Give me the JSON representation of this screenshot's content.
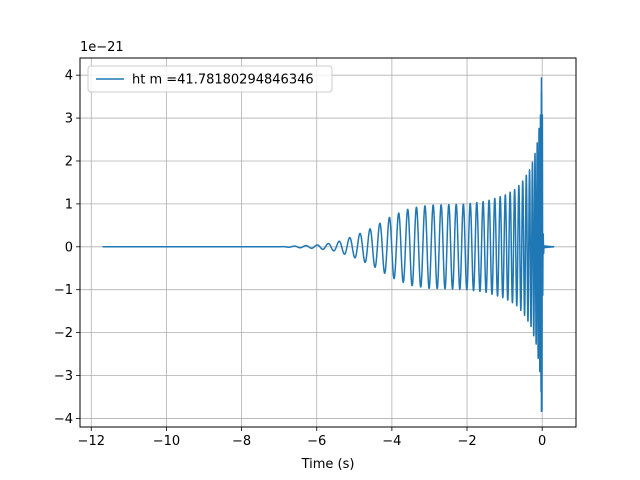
{
  "chart_data": {
    "type": "line",
    "title": "",
    "xlabel": "Time (s)",
    "ylabel": "",
    "offset_label": "1e−21",
    "xlim": [
      -12.3,
      0.9
    ],
    "ylim": [
      -4.2,
      4.4
    ],
    "xticks": [
      -12,
      -10,
      -8,
      -6,
      -4,
      -2,
      0
    ],
    "xtick_labels": [
      "−12",
      "−10",
      "−8",
      "−6",
      "−4",
      "−2",
      "0"
    ],
    "yticks": [
      -4,
      -3,
      -2,
      -1,
      0,
      1,
      2,
      3,
      4
    ],
    "ytick_labels": [
      "−4",
      "−3",
      "−2",
      "−1",
      "0",
      "1",
      "2",
      "3",
      "4"
    ],
    "grid": true,
    "legend": {
      "placement": "upper-left"
    },
    "series": [
      {
        "name": "ht m =41.78180294846346",
        "color": "#1f77b4",
        "time_span": [
          -11.7,
          0.32
        ],
        "envelope": {
          "t": [
            -11.7,
            -7.0,
            -6.5,
            -6.0,
            -5.5,
            -5.0,
            -4.5,
            -4.0,
            -3.5,
            -3.0,
            -2.5,
            -2.0,
            -1.5,
            -1.0,
            -0.7,
            -0.5,
            -0.3,
            -0.15,
            -0.05,
            0.0,
            0.02,
            0.05,
            0.32
          ],
          "amplitude": [
            0.0,
            0.0,
            0.02,
            0.04,
            0.1,
            0.25,
            0.45,
            0.72,
            0.9,
            0.97,
            0.98,
            1.0,
            1.06,
            1.2,
            1.35,
            1.55,
            1.85,
            2.3,
            3.0,
            3.95,
            0.4,
            0.02,
            0.0
          ]
        }
      }
    ]
  }
}
